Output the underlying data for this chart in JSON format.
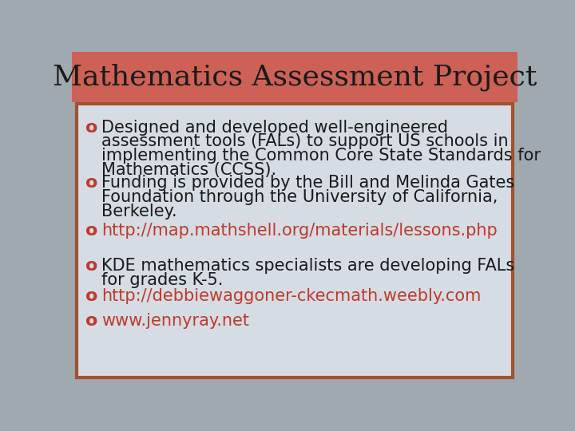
{
  "title": "Mathematics Assessment Project",
  "title_color": "#1a1a1a",
  "title_bg_color": "#cd6155",
  "slide_bg_color": "#a0a8b0",
  "content_bg_color": "#d6dce4",
  "content_border_color": "#a0522d",
  "bullet_symbol": "o",
  "bullet_color": "#c0392b",
  "text_color": "#1a1a1a",
  "link_color": "#c0392b",
  "font_size": 15,
  "title_font_size": 26,
  "bullets": [
    {
      "text": "Designed and developed well-engineered\nassessment tools (FALs) to support US schools in\nimplementing the Common Core State Standards for\nMathematics (CCSS).",
      "is_link": false
    },
    {
      "text": "Funding is provided by the Bill and Melinda Gates\nFoundation through the University of California,\nBerkeley.",
      "is_link": false
    },
    {
      "text": "http://map.mathshell.org/materials/lessons.php",
      "is_link": true
    },
    {
      "text": "KDE mathematics specialists are developing FALs\nfor grades K-5.",
      "is_link": false
    },
    {
      "text": "http://debbiewaggoner-ckecmath.weebly.com",
      "is_link": true
    },
    {
      "text": "www.jennyray.net",
      "is_link": true
    }
  ]
}
